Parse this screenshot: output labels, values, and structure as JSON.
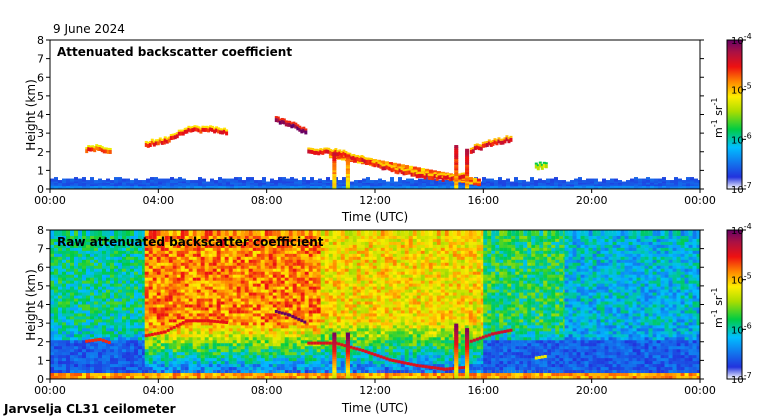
{
  "date_label": "9 June 2024",
  "footer_label": "Jarvselja CL31 ceilometer",
  "chart_data": [
    {
      "type": "heatmap",
      "title": "Attenuated backscatter coefficient",
      "xlabel": "Time (UTC)",
      "ylabel": "Height (km)",
      "x_tick_labels": [
        "00:00",
        "04:00",
        "08:00",
        "12:00",
        "16:00",
        "20:00",
        "00:00"
      ],
      "x_tick_hours": [
        0,
        4,
        8,
        12,
        16,
        20,
        24
      ],
      "xlim_hours": [
        0,
        24
      ],
      "y_ticks": [
        0,
        1,
        2,
        3,
        4,
        5,
        6,
        7,
        8
      ],
      "ylim": [
        0,
        8
      ],
      "colorbar": {
        "ticks": [
          "10",
          "10",
          "10",
          "10"
        ],
        "exponents": [
          "-7",
          "-6",
          "-5",
          "-4"
        ],
        "unit": {
          "m": "m",
          "m_exp": "-1",
          "sr": "sr",
          "sr_exp": "-1"
        },
        "range": [
          1e-07,
          0.0001
        ],
        "scale": "log"
      },
      "layers": [
        {
          "name": "surface-layer",
          "from_h": 0.0,
          "to_h": 24.0,
          "top_km": 0.5,
          "level": 0.1
        },
        {
          "name": "residual-layer-top",
          "from_h": 10.3,
          "to_h": 15.8,
          "top_start_km": 1.9,
          "top_end_km": 0.4,
          "level": 0.62
        }
      ],
      "cloud_layers": [
        {
          "name": "cloud-early",
          "points": [
            [
              1.3,
              2.0
            ],
            [
              1.8,
              2.1
            ],
            [
              2.2,
              1.9
            ]
          ],
          "level": 0.75
        },
        {
          "name": "cloud-morning-rising",
          "points": [
            [
              3.5,
              2.3
            ],
            [
              4.2,
              2.5
            ],
            [
              5.0,
              3.1
            ],
            [
              5.8,
              3.1
            ],
            [
              6.5,
              3.0
            ]
          ],
          "level": 0.78
        },
        {
          "name": "cloud-high-morning",
          "points": [
            [
              8.3,
              3.6
            ],
            [
              8.8,
              3.4
            ],
            [
              9.4,
              3.0
            ]
          ],
          "level": 0.95
        },
        {
          "name": "cloud-descending",
          "points": [
            [
              9.5,
              1.9
            ],
            [
              10.5,
              1.9
            ],
            [
              11.5,
              1.5
            ],
            [
              12.5,
              1.0
            ],
            [
              13.5,
              0.7
            ],
            [
              14.5,
              0.5
            ],
            [
              15.3,
              0.6
            ]
          ],
          "level": 0.8
        },
        {
          "name": "cloud-afternoon",
          "points": [
            [
              15.5,
              2.0
            ],
            [
              16.3,
              2.4
            ],
            [
              17.0,
              2.6
            ]
          ],
          "level": 0.82
        },
        {
          "name": "cloud-evening",
          "points": [
            [
              17.9,
              1.1
            ],
            [
              18.3,
              1.2
            ]
          ],
          "level": 0.55
        }
      ],
      "columns": [
        {
          "name": "shower-1030",
          "t_h": 10.5,
          "top_km": 1.9,
          "level": 0.55
        },
        {
          "name": "shower-1100",
          "t_h": 11.0,
          "top_km": 1.8,
          "level": 0.5
        },
        {
          "name": "shower-1500",
          "t_h": 15.0,
          "top_km": 2.3,
          "level": 0.6
        },
        {
          "name": "shower-1530",
          "t_h": 15.4,
          "top_km": 2.1,
          "level": 0.62
        }
      ]
    },
    {
      "type": "heatmap",
      "title": "Raw attenuated backscatter coefficient",
      "xlabel": "Time (UTC)",
      "ylabel": "Height (km)",
      "x_tick_labels": [
        "00:00",
        "04:00",
        "08:00",
        "12:00",
        "16:00",
        "20:00",
        "00:00"
      ],
      "x_tick_hours": [
        0,
        4,
        8,
        12,
        16,
        20,
        24
      ],
      "xlim_hours": [
        0,
        24
      ],
      "y_ticks": [
        0,
        1,
        2,
        3,
        4,
        5,
        6,
        7,
        8
      ],
      "ylim": [
        0,
        8
      ],
      "colorbar": {
        "ticks": [
          "10",
          "10",
          "10",
          "10"
        ],
        "exponents": [
          "-7",
          "-6",
          "-5",
          "-4"
        ],
        "unit": {
          "m": "m",
          "m_exp": "-1",
          "sr": "sr",
          "sr_exp": "-1"
        },
        "range": [
          1e-07,
          0.0001
        ],
        "scale": "log"
      },
      "noise_regions": [
        {
          "name": "night-early",
          "from_h": 0.0,
          "to_h": 3.5,
          "level": 0.35
        },
        {
          "name": "daytime-noisy",
          "from_h": 3.5,
          "to_h": 10.0,
          "level": 0.72
        },
        {
          "name": "midday",
          "from_h": 10.0,
          "to_h": 16.0,
          "level": 0.62
        },
        {
          "name": "evening",
          "from_h": 16.0,
          "to_h": 19.0,
          "level": 0.4
        },
        {
          "name": "night-late",
          "from_h": 19.0,
          "to_h": 24.0,
          "level": 0.28
        }
      ],
      "data_top_km": 7.7
    }
  ]
}
